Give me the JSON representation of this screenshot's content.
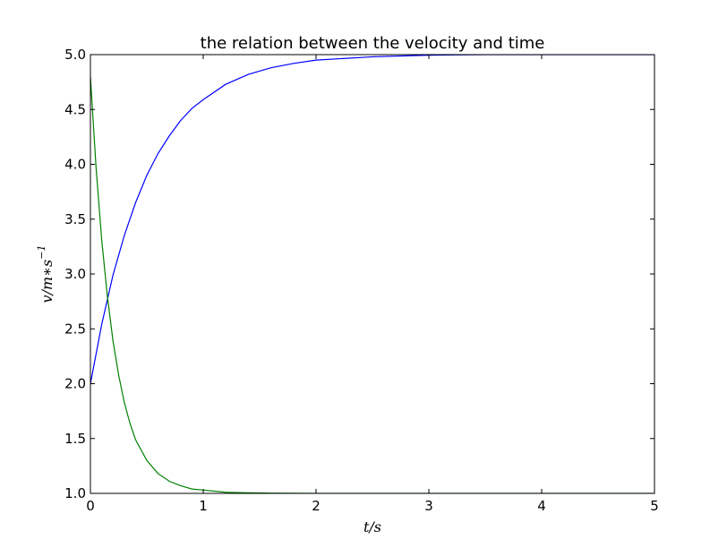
{
  "chart_data": {
    "type": "line",
    "title": "the relation between the velocity and time",
    "xlabel": "t/s",
    "ylabel": "v/m∗s",
    "ylabel_superscript": "−1",
    "xlim": [
      0,
      5
    ],
    "ylim": [
      1.0,
      5.0
    ],
    "x_ticks": [
      0,
      1,
      2,
      3,
      4,
      5
    ],
    "x_tick_labels": [
      "0",
      "1",
      "2",
      "3",
      "4",
      "5"
    ],
    "y_ticks": [
      1.0,
      1.5,
      2.0,
      2.5,
      3.0,
      3.5,
      4.0,
      4.5,
      5.0
    ],
    "y_tick_labels": [
      "1.0",
      "1.5",
      "2.0",
      "2.5",
      "3.0",
      "3.5",
      "4.0",
      "4.5",
      "5.0"
    ],
    "grid": false,
    "legend": "none",
    "series": [
      {
        "color": "#0000ff",
        "x": [
          0,
          0.1,
          0.2,
          0.3,
          0.4,
          0.5,
          0.6,
          0.7,
          0.8,
          0.9,
          1.0,
          1.2,
          1.4,
          1.6,
          1.8,
          2.0,
          2.5,
          3.0,
          3.5,
          4.0,
          4.5,
          5.0
        ],
        "y": [
          2.0,
          2.54,
          2.99,
          3.35,
          3.65,
          3.9,
          4.1,
          4.26,
          4.4,
          4.51,
          4.59,
          4.73,
          4.82,
          4.88,
          4.92,
          4.95,
          4.98,
          4.995,
          5.0,
          5.0,
          5.0,
          5.0
        ]
      },
      {
        "color": "#008000",
        "x": [
          0,
          0.05,
          0.1,
          0.15,
          0.2,
          0.25,
          0.3,
          0.35,
          0.4,
          0.5,
          0.6,
          0.7,
          0.8,
          0.9,
          1.0,
          1.2,
          1.4,
          1.6,
          2.0,
          3.0,
          4.0,
          5.0
        ],
        "y": [
          4.8,
          3.97,
          3.31,
          2.8,
          2.39,
          2.08,
          1.83,
          1.64,
          1.49,
          1.3,
          1.18,
          1.11,
          1.07,
          1.04,
          1.03,
          1.01,
          1.005,
          1.002,
          1.0,
          1.0,
          1.0,
          1.0
        ]
      }
    ]
  }
}
